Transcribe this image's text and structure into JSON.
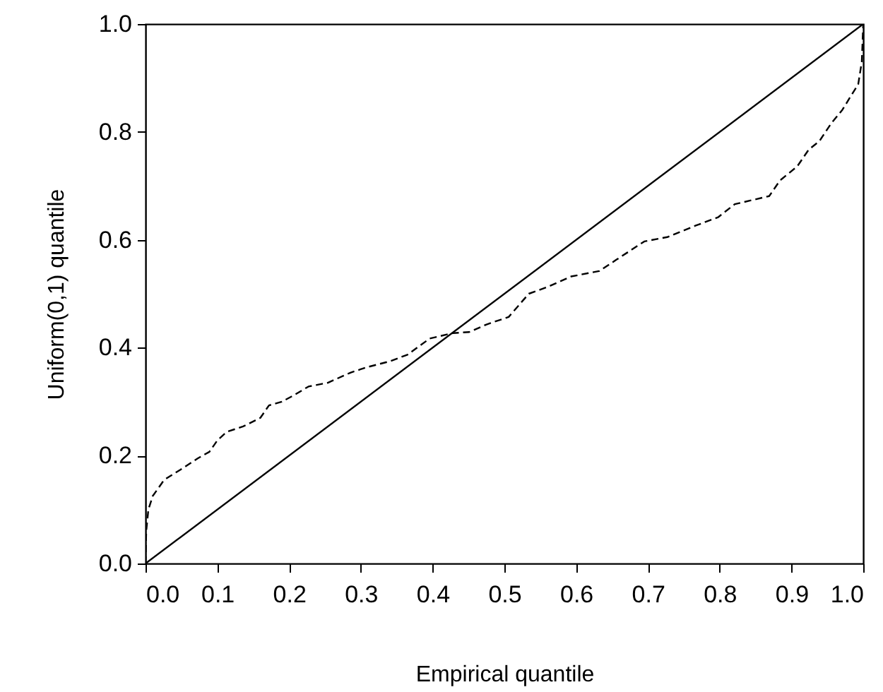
{
  "chart_data": {
    "type": "line",
    "xlabel": "Empirical quantile",
    "ylabel": "Uniform(0,1) quantile",
    "xlim": [
      0,
      1
    ],
    "ylim": [
      0,
      1
    ],
    "xticks": [
      {
        "value": 0,
        "label": "0.0"
      },
      0.1,
      0.2,
      0.3,
      0.4,
      0.5,
      0.6,
      0.7,
      0.8,
      0.9,
      {
        "value": 1,
        "label": "1.0"
      }
    ],
    "yticks": [
      {
        "value": 0,
        "label": "0.0"
      },
      0.2,
      0.4,
      0.6,
      0.8,
      {
        "value": 1,
        "label": "1.0"
      }
    ],
    "grid": false,
    "marker": "none",
    "series": [
      {
        "color": "#000000",
        "line_style": "solid",
        "x": [
          0,
          1
        ],
        "values": [
          0,
          1
        ]
      },
      {
        "color": "#000000",
        "line_style": "dashed",
        "x": [
          0,
          0.001,
          0.004,
          0.01,
          0.026,
          0.05,
          0.073,
          0.089,
          0.1,
          0.113,
          0.136,
          0.16,
          0.172,
          0.19,
          0.207,
          0.227,
          0.254,
          0.286,
          0.309,
          0.341,
          0.365,
          0.396,
          0.428,
          0.451,
          0.475,
          0.506,
          0.534,
          0.561,
          0.593,
          0.632,
          0.656,
          0.695,
          0.727,
          0.766,
          0.798,
          0.821,
          0.869,
          0.884,
          0.908,
          0.924,
          0.939,
          0.955,
          0.971,
          0.983,
          0.993,
          0.998,
          1
        ],
        "values": [
          0,
          0.06,
          0.1,
          0.125,
          0.155,
          0.175,
          0.195,
          0.207,
          0.228,
          0.244,
          0.254,
          0.27,
          0.293,
          0.3,
          0.312,
          0.328,
          0.335,
          0.354,
          0.364,
          0.375,
          0.387,
          0.417,
          0.427,
          0.429,
          0.443,
          0.457,
          0.5,
          0.513,
          0.532,
          0.542,
          0.563,
          0.597,
          0.605,
          0.626,
          0.642,
          0.666,
          0.681,
          0.71,
          0.736,
          0.767,
          0.783,
          0.815,
          0.841,
          0.867,
          0.888,
          0.93,
          1
        ]
      }
    ]
  }
}
